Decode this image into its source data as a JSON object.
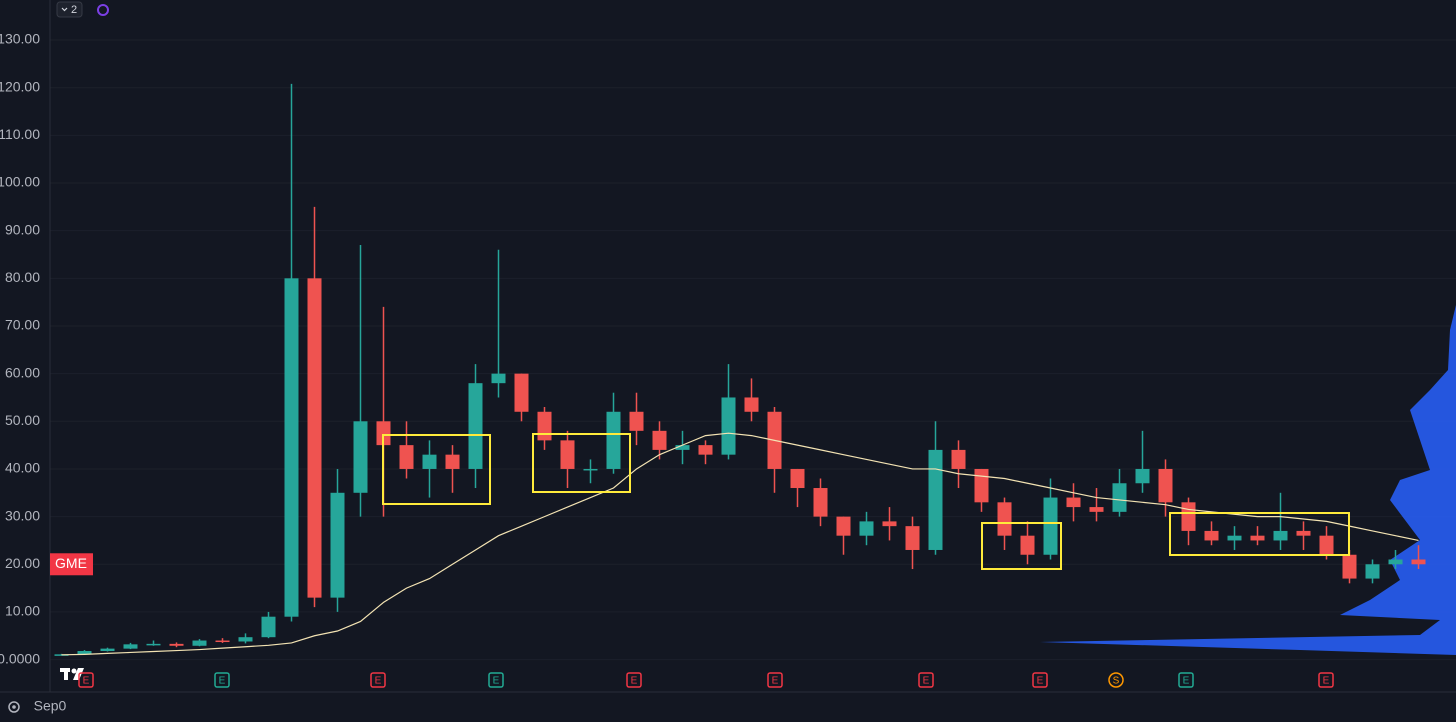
{
  "chart_data": {
    "type": "candlestick",
    "symbol": "GME",
    "badge": "2",
    "up_color": "#26a69a",
    "down_color": "#ef5350",
    "categories": [
      "Sep0",
      null
    ],
    "ylim": [
      -6.8,
      138.4
    ],
    "yticks": [
      {
        "value": 130,
        "label": "130.00"
      },
      {
        "value": 120,
        "label": "120.00"
      },
      {
        "value": 110,
        "label": "110.00"
      },
      {
        "value": 100,
        "label": "100.00"
      },
      {
        "value": 90,
        "label": "90.00"
      },
      {
        "value": 80,
        "label": "80.00"
      },
      {
        "value": 70,
        "label": "70.00"
      },
      {
        "value": 60,
        "label": "60.00"
      },
      {
        "value": 50,
        "label": "50.00"
      },
      {
        "value": 40,
        "label": "40.00"
      },
      {
        "value": 30,
        "label": "30.00"
      },
      {
        "value": 20,
        "label": "20.00"
      },
      {
        "value": 10,
        "label": "10.00"
      },
      {
        "value": 0,
        "label": "0.0000"
      }
    ],
    "grid": true,
    "open": [
      1.0,
      1.1,
      1.8,
      2.3,
      3.2,
      3.3,
      2.9,
      4.0,
      3.8,
      4.7,
      9.0,
      80,
      13,
      35,
      50,
      45,
      40,
      43,
      40,
      58,
      60,
      52,
      46,
      40,
      40,
      52,
      48,
      44,
      45,
      43,
      55,
      52,
      40,
      36,
      30,
      26,
      29,
      28,
      23,
      44,
      40,
      33,
      26,
      22,
      34,
      32,
      31,
      37,
      40,
      33,
      27,
      25,
      26,
      25,
      27,
      26,
      22,
      17,
      20,
      21,
      null,
      null
    ],
    "high": [
      1.2,
      2.0,
      2.5,
      3.5,
      4.0,
      3.6,
      4.3,
      4.5,
      5.5,
      10.0,
      120.8,
      95,
      40,
      87,
      74,
      50,
      46,
      45,
      62,
      86,
      60,
      53,
      48,
      42,
      56,
      56,
      50,
      48,
      46,
      62,
      59,
      53,
      40,
      38,
      30,
      31,
      32,
      30,
      50,
      46,
      40,
      34,
      29,
      38,
      37,
      36,
      40,
      48,
      42,
      34,
      29,
      28,
      28,
      35,
      29,
      28,
      23,
      21,
      23,
      24,
      null,
      null
    ],
    "low": [
      0.9,
      1.0,
      1.7,
      2.2,
      2.9,
      2.6,
      2.8,
      3.5,
      3.4,
      4.5,
      8.0,
      11,
      10,
      30,
      30,
      38,
      34,
      35,
      36,
      55,
      50,
      44,
      36,
      37,
      39,
      45,
      42,
      41,
      41,
      42,
      50,
      35,
      32,
      28,
      22,
      24,
      25,
      19,
      22,
      36,
      31,
      23,
      20,
      21,
      29,
      29,
      30,
      35,
      30,
      24,
      24,
      23,
      24,
      23,
      23,
      21,
      16,
      16,
      19,
      19,
      null,
      null
    ],
    "close": [
      1.1,
      1.8,
      2.3,
      3.2,
      3.3,
      2.9,
      4.0,
      3.8,
      4.7,
      9.0,
      80,
      13,
      35,
      50,
      45,
      40,
      43,
      40,
      58,
      60,
      52,
      46,
      40,
      40,
      52,
      48,
      44,
      45,
      43,
      55,
      52,
      40,
      36,
      30,
      26,
      29,
      28,
      23,
      44,
      40,
      33,
      26,
      22,
      34,
      32,
      31,
      37,
      40,
      33,
      27,
      25,
      26,
      25,
      27,
      26,
      22,
      17,
      20,
      21,
      20,
      null,
      null
    ],
    "moving_average": {
      "color": "#f3e3b3",
      "values": [
        1.0,
        1.1,
        1.3,
        1.5,
        1.7,
        1.9,
        2.1,
        2.4,
        2.7,
        3.0,
        3.5,
        5,
        6,
        8,
        12,
        15,
        17,
        20,
        23,
        26,
        28,
        30,
        32,
        34,
        36,
        40,
        43,
        45,
        47,
        47.5,
        47,
        46,
        45,
        44,
        43,
        42,
        41,
        40,
        40,
        39,
        38.5,
        38,
        37,
        36,
        35,
        34,
        33.5,
        33,
        32.5,
        31.5,
        31,
        30.5,
        30,
        30,
        29.5,
        29,
        28,
        27,
        26,
        25,
        null,
        null
      ]
    },
    "events": [
      "E",
      "E",
      "E",
      "E",
      "E",
      "E",
      "E",
      "E",
      "S",
      "E",
      "E"
    ]
  }
}
